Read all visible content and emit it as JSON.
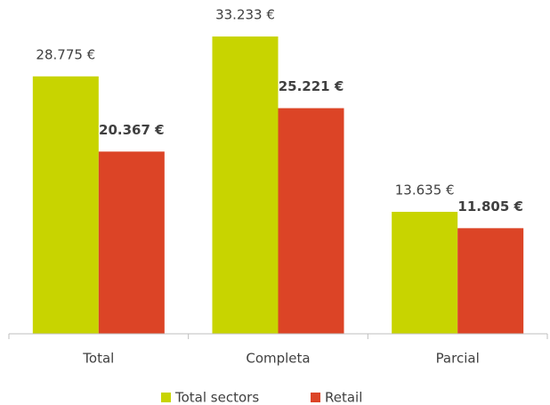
{
  "chart_data": {
    "type": "bar",
    "categories": [
      "Total",
      "Completa",
      "Parcial"
    ],
    "series": [
      {
        "name": "Total sectors",
        "color": "#c8d400",
        "values": [
          28775,
          33233,
          13635
        ],
        "value_labels": [
          "28.775 €",
          "33.233 €",
          "13.635 €"
        ]
      },
      {
        "name": "Retail",
        "color": "#dc4426",
        "values": [
          20367,
          25221,
          11805
        ],
        "value_labels": [
          "20.367 €",
          "25.221 €",
          "11.805 €"
        ]
      }
    ],
    "legend": "bottom"
  }
}
